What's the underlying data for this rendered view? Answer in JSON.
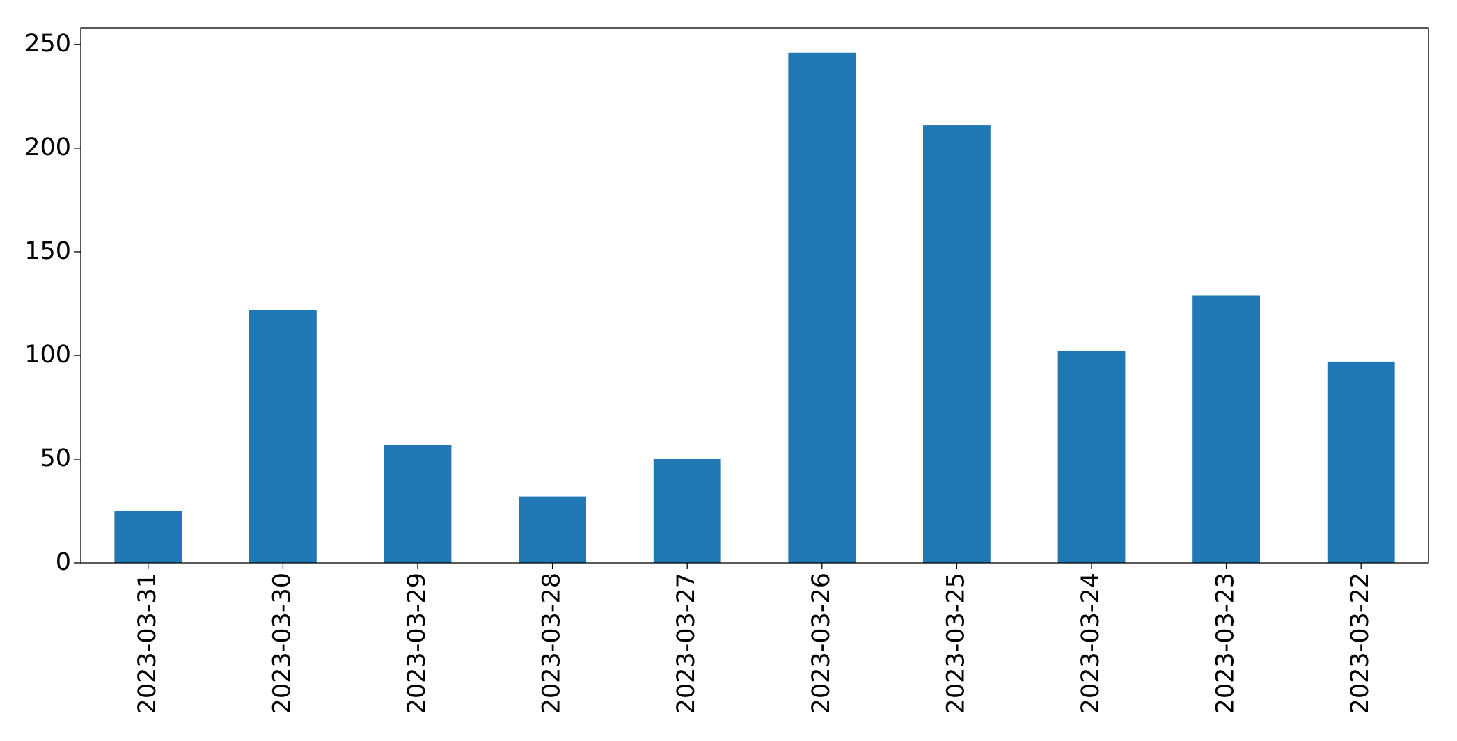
{
  "chart_data": {
    "type": "bar",
    "categories": [
      "2023-03-31",
      "2023-03-30",
      "2023-03-29",
      "2023-03-28",
      "2023-03-27",
      "2023-03-26",
      "2023-03-25",
      "2023-03-24",
      "2023-03-23",
      "2023-03-22"
    ],
    "values": [
      25,
      122,
      57,
      32,
      50,
      246,
      211,
      102,
      129,
      97
    ],
    "color": "#1f77b4",
    "ylim": [
      0,
      258
    ],
    "yticks": [
      0,
      50,
      100,
      150,
      200,
      250
    ],
    "grid": false
  }
}
